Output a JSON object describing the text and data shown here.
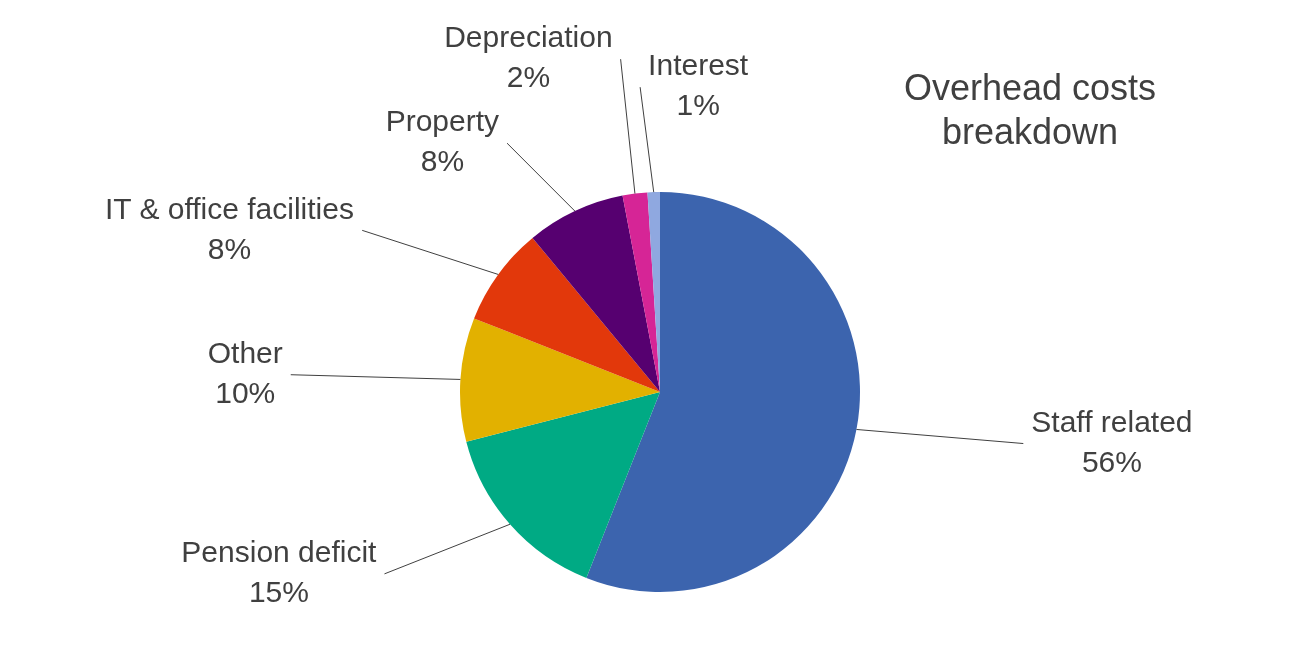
{
  "chart_data": {
    "type": "pie",
    "title": "Overhead costs breakdown",
    "categories": [
      "Staff related",
      "Pension deficit",
      "Other",
      "IT & office facilities",
      "Property",
      "Depreciation",
      "Interest"
    ],
    "values": [
      56,
      15,
      10,
      8,
      8,
      2,
      1
    ],
    "value_labels": [
      "56%",
      "15%",
      "10%",
      "8%",
      "8%",
      "2%",
      "1%"
    ],
    "colors": [
      "#3c64ae",
      "#00aa84",
      "#e2b100",
      "#e2380b",
      "#560070",
      "#d62596",
      "#8fa8e0"
    ],
    "legend": false
  }
}
